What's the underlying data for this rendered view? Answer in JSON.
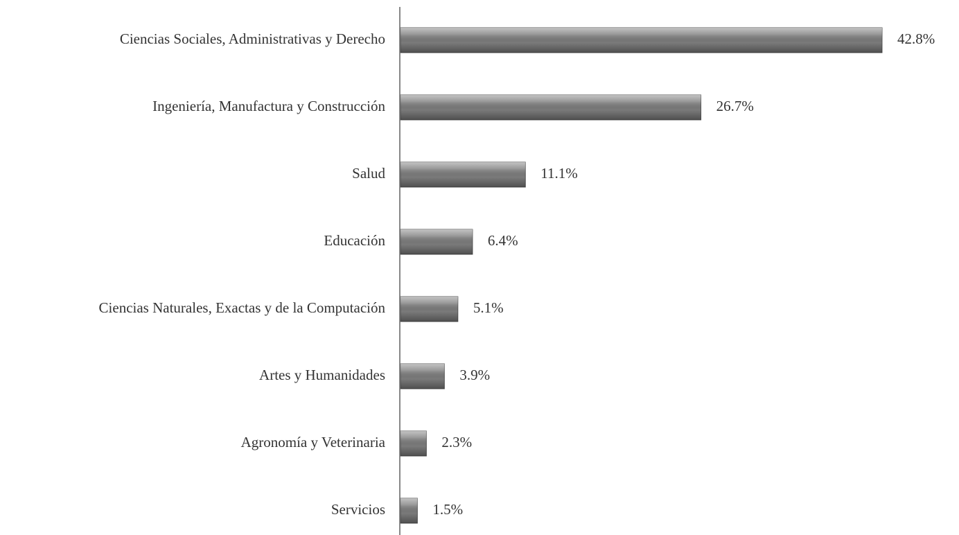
{
  "chart_data": {
    "type": "bar",
    "orientation": "horizontal",
    "categories": [
      "Ciencias Sociales, Administrativas y Derecho",
      "Ingeniería, Manufactura y Construcción",
      "Salud",
      "Educación",
      "Ciencias Naturales, Exactas y de la Computación",
      "Artes y Humanidades",
      "Agronomía y Veterinaria",
      "Servicios"
    ],
    "values": [
      42.8,
      26.7,
      11.1,
      6.4,
      5.1,
      3.9,
      2.3,
      1.5
    ],
    "value_labels": [
      "42.8%",
      "26.7%",
      "11.1%",
      "6.4%",
      "5.1%",
      "3.9%",
      "2.3%",
      "1.5%"
    ],
    "color": "#7a7a7a"
  }
}
